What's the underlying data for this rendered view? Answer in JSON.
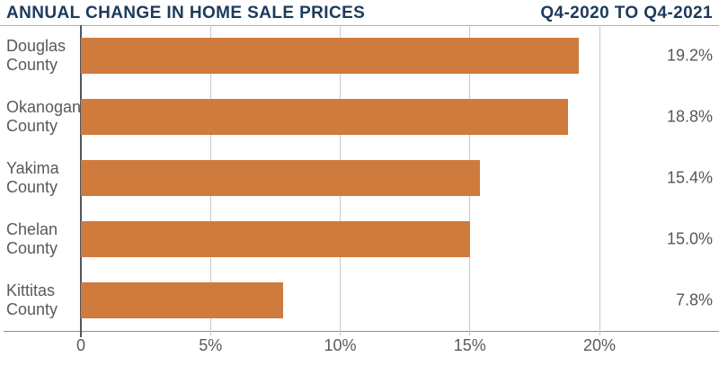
{
  "header": {
    "title": "ANNUAL CHANGE IN HOME SALE PRICES",
    "period": "Q4-2020 TO Q4-2021"
  },
  "chart_data": {
    "type": "bar",
    "orientation": "horizontal",
    "title": "ANNUAL CHANGE IN HOME SALE PRICES",
    "subtitle": "Q4-2020 TO Q4-2021",
    "categories": [
      "Douglas County",
      "Okanogan County",
      "Yakima County",
      "Chelan County",
      "Kittitas County"
    ],
    "values": [
      19.2,
      18.8,
      15.4,
      15.0,
      7.8
    ],
    "value_labels": [
      "19.2%",
      "18.8%",
      "15.4%",
      "15.0%",
      "7.8%"
    ],
    "x_ticks": [
      {
        "value": 0,
        "label": "0"
      },
      {
        "value": 5,
        "label": "5%"
      },
      {
        "value": 10,
        "label": "10%"
      },
      {
        "value": 15,
        "label": "15%"
      },
      {
        "value": 20,
        "label": "20%"
      }
    ],
    "xlim": [
      0,
      24.6
    ],
    "grid": true,
    "legend": "none",
    "bar_color": "#CE7B3D"
  },
  "colors": {
    "bar": "#CE7B3D",
    "title_navy": "#1D3A5C",
    "label_gray": "#58595B",
    "gridline": "#C9C9C9",
    "axis_line": "#919191",
    "zero_axis": "#54555A"
  }
}
